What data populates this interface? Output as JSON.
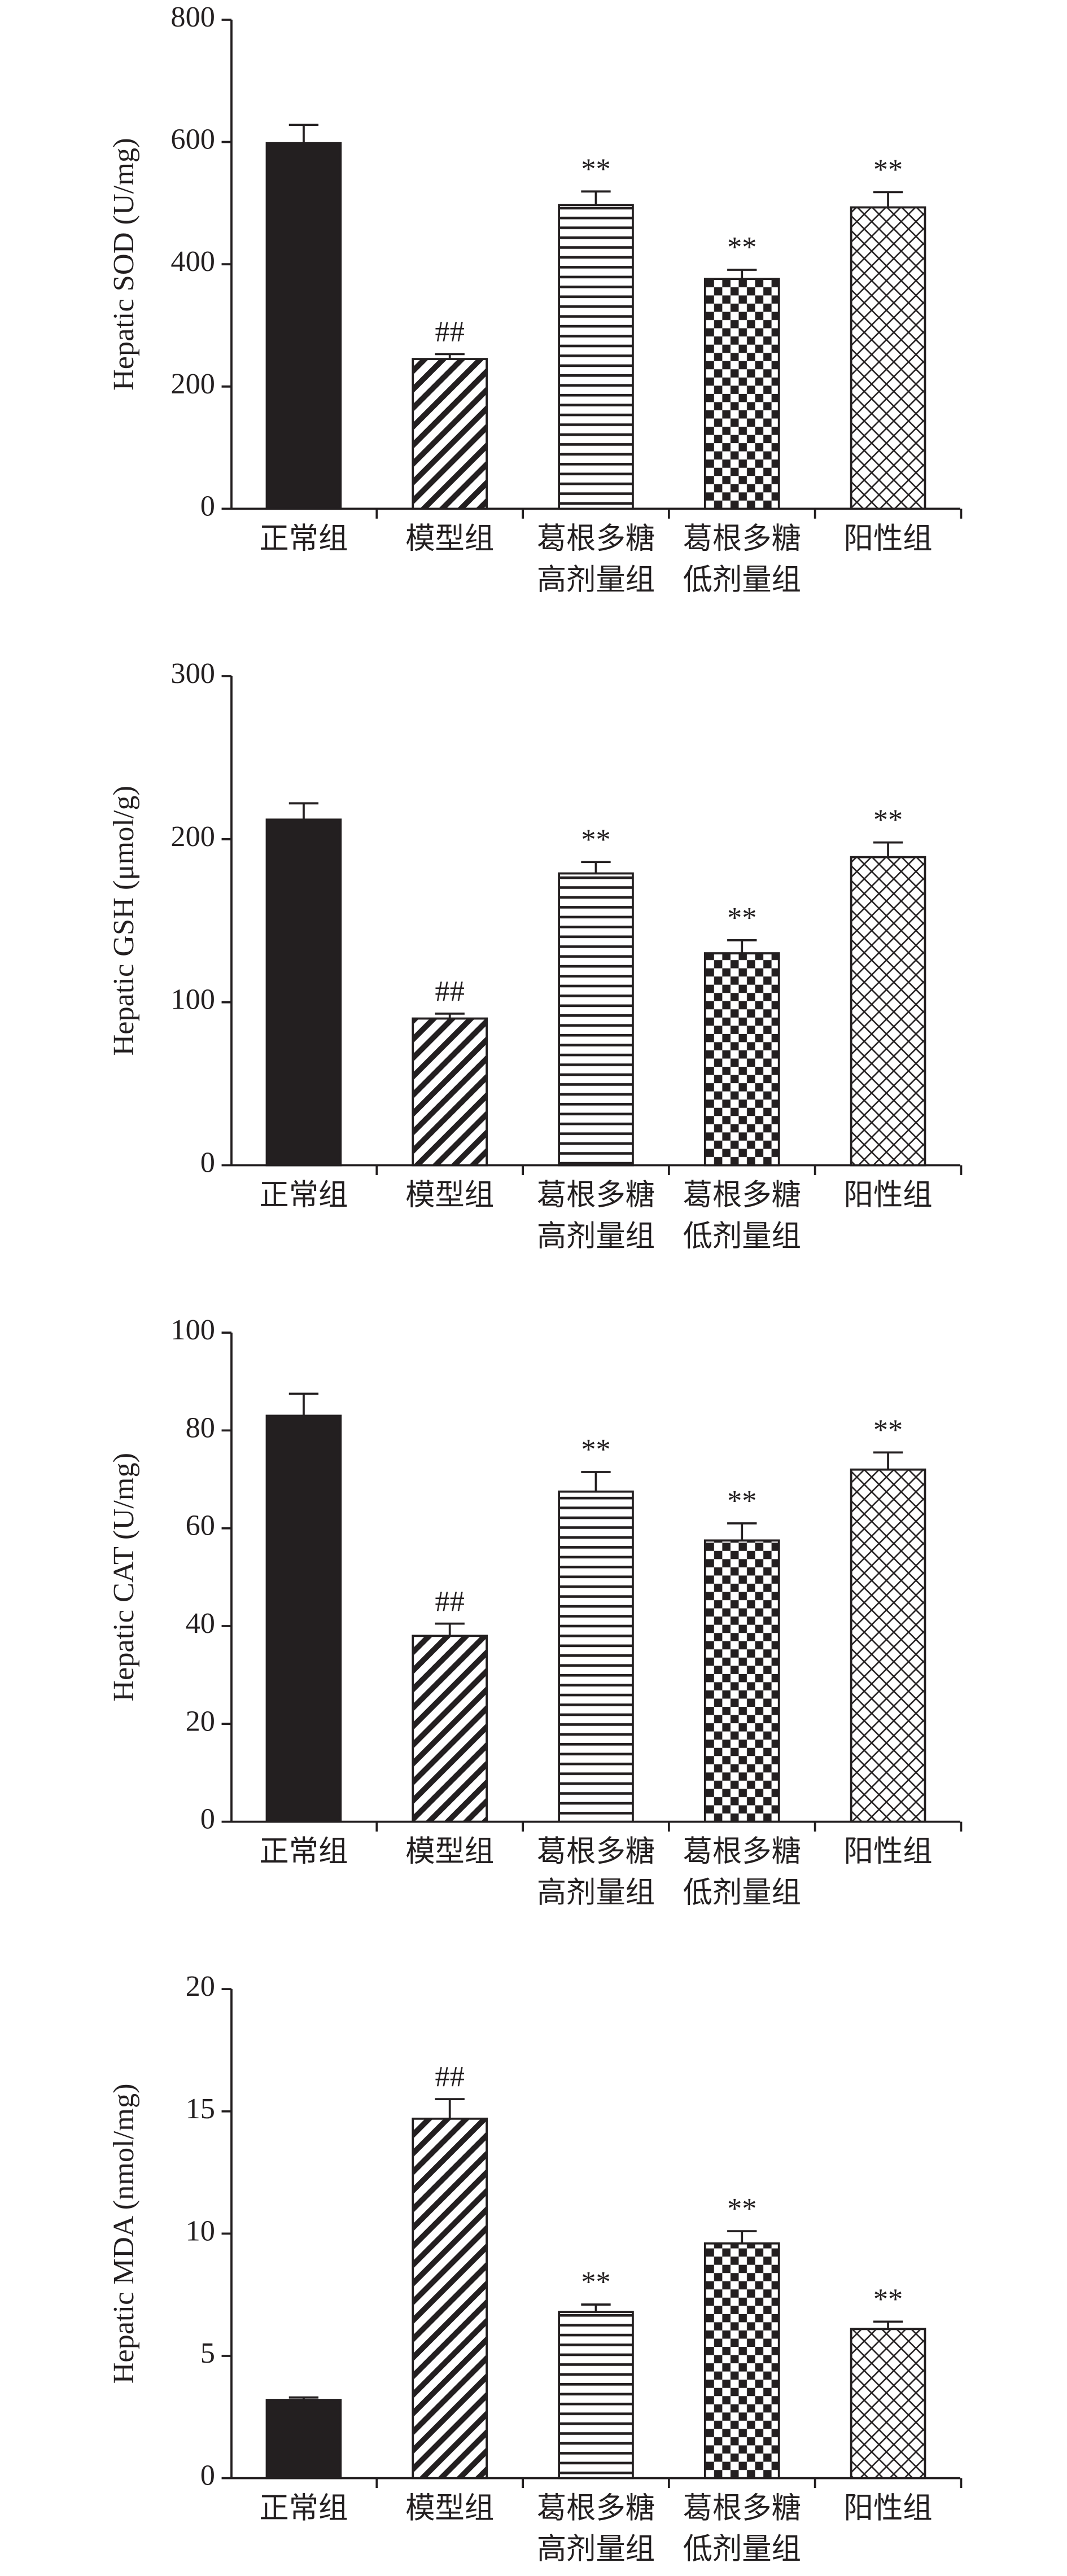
{
  "chart_data": [
    {
      "type": "bar",
      "ylabel": "Hepatic SOD (U/mg)",
      "categories": [
        [
          "正常组"
        ],
        [
          "模型组"
        ],
        [
          "葛根多糖",
          "高剂量组"
        ],
        [
          "葛根多糖",
          "低剂量组"
        ],
        [
          "阳性组"
        ]
      ],
      "values": [
        598,
        245,
        497,
        376,
        493
      ],
      "errors": [
        30,
        8,
        22,
        15,
        25
      ],
      "annotations": [
        null,
        "##",
        "**",
        "**",
        "**"
      ],
      "fills": [
        "solid",
        "diagonal",
        "horizontal",
        "checker",
        "crosshatch"
      ],
      "ylim": [
        0,
        800
      ],
      "yticks": [
        0,
        200,
        400,
        600,
        800
      ]
    },
    {
      "type": "bar",
      "ylabel": "Hepatic GSH (μmol/g)",
      "categories": [
        [
          "正常组"
        ],
        [
          "模型组"
        ],
        [
          "葛根多糖",
          "高剂量组"
        ],
        [
          "葛根多糖",
          "低剂量组"
        ],
        [
          "阳性组"
        ]
      ],
      "values": [
        212,
        90,
        179,
        130,
        189
      ],
      "errors": [
        10,
        3,
        7,
        8,
        9
      ],
      "annotations": [
        null,
        "##",
        "**",
        "**",
        "**"
      ],
      "fills": [
        "solid",
        "diagonal",
        "horizontal",
        "checker",
        "crosshatch"
      ],
      "ylim": [
        0,
        300
      ],
      "yticks": [
        0,
        100,
        200,
        300
      ]
    },
    {
      "type": "bar",
      "ylabel": "Hepatic CAT (U/mg)",
      "categories": [
        [
          "正常组"
        ],
        [
          "模型组"
        ],
        [
          "葛根多糖",
          "高剂量组"
        ],
        [
          "葛根多糖",
          "低剂量组"
        ],
        [
          "阳性组"
        ]
      ],
      "values": [
        83,
        38,
        67.5,
        57.5,
        72
      ],
      "errors": [
        4.5,
        2.5,
        4,
        3.5,
        3.5
      ],
      "annotations": [
        null,
        "##",
        "**",
        "**",
        "**"
      ],
      "fills": [
        "solid",
        "diagonal",
        "horizontal",
        "checker",
        "crosshatch"
      ],
      "ylim": [
        0,
        100
      ],
      "yticks": [
        0,
        20,
        40,
        60,
        80,
        100
      ]
    },
    {
      "type": "bar",
      "ylabel": "Hepatic MDA (nmol/mg)",
      "categories": [
        [
          "正常组"
        ],
        [
          "模型组"
        ],
        [
          "葛根多糖",
          "高剂量组"
        ],
        [
          "葛根多糖",
          "低剂量组"
        ],
        [
          "阳性组"
        ]
      ],
      "values": [
        3.2,
        14.7,
        6.8,
        9.6,
        6.1
      ],
      "errors": [
        0.1,
        0.8,
        0.3,
        0.5,
        0.3
      ],
      "annotations": [
        null,
        "##",
        "**",
        "**",
        "**"
      ],
      "fills": [
        "solid",
        "diagonal",
        "horizontal",
        "checker",
        "crosshatch"
      ],
      "ylim": [
        0,
        20
      ],
      "yticks": [
        0,
        5,
        10,
        15,
        20
      ]
    }
  ]
}
